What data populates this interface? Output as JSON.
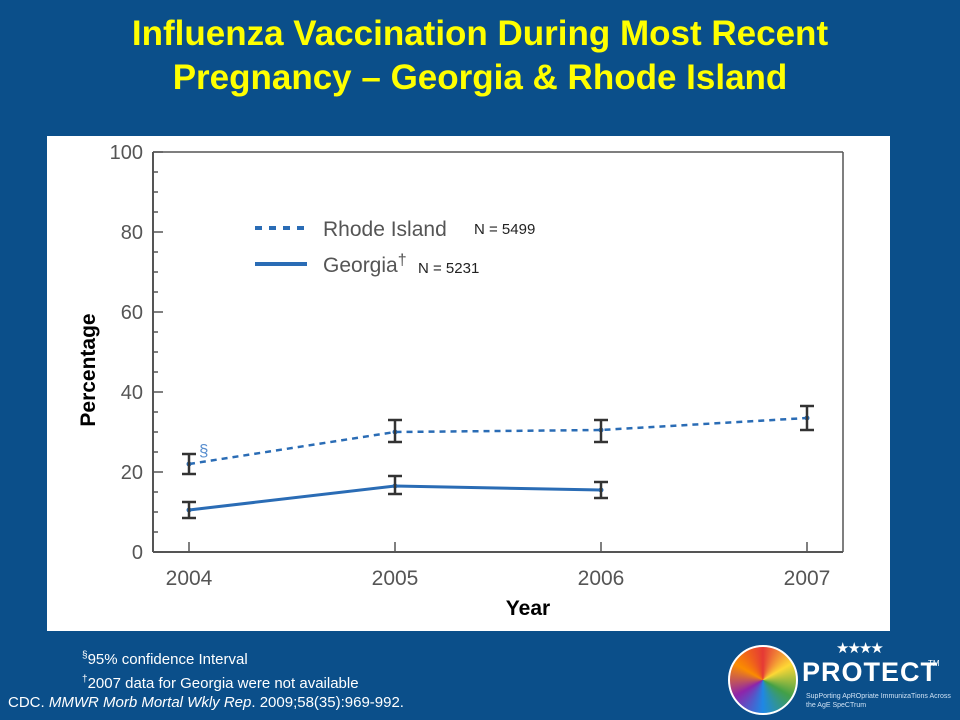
{
  "slide": {
    "title_line1": "Influenza Vaccination During Most Recent",
    "title_line2": "Pregnancy – Georgia & Rhode Island",
    "footnote_1_mark": "§",
    "footnote_1_text": "95% confidence Interval",
    "footnote_2_mark": "†",
    "footnote_2_text": "2007 data for Georgia were not available",
    "citation_prefix": "CDC. ",
    "citation_journal": "MMWR Morb Mortal Wkly Rep",
    "citation_suffix": ". 2009;58(35):969-992.",
    "logo": {
      "name": "PROTECT",
      "tm": "TM",
      "tagline": "SupPorting ApROpriate ImmunizaTions Across the AgE SpeCTrum",
      "people_icon": "people-icon",
      "globe_icon": "globe-icon"
    }
  },
  "chart_data": {
    "type": "line",
    "title": "",
    "xlabel": "Year",
    "ylabel": "Percentage",
    "x": [
      2004,
      2005,
      2006,
      2007
    ],
    "x_tick_labels": [
      "2004",
      "2005",
      "2006",
      "2007"
    ],
    "ylim": [
      0,
      100
    ],
    "y_ticks": [
      0,
      20,
      40,
      60,
      80,
      100
    ],
    "grid": false,
    "legend_position": "top-left",
    "series": [
      {
        "name": "Rhode Island",
        "style": "dashed",
        "color": "#2a6cb5",
        "values": [
          22,
          30,
          30.5,
          33.5
        ],
        "ci_low": [
          19.5,
          27.5,
          27.5,
          30.5
        ],
        "ci_high": [
          24.5,
          33,
          33,
          36.5
        ],
        "annotation": "N = 5499"
      },
      {
        "name": "Georgia",
        "name_mark": "†",
        "style": "solid",
        "color": "#2a6cb5",
        "values": [
          10.5,
          16.5,
          15.5,
          null
        ],
        "ci_low": [
          8.5,
          14.5,
          13.5,
          null
        ],
        "ci_high": [
          12.5,
          19,
          17.5,
          null
        ],
        "annotation": "N = 5231"
      }
    ],
    "ci_marker": "§"
  }
}
